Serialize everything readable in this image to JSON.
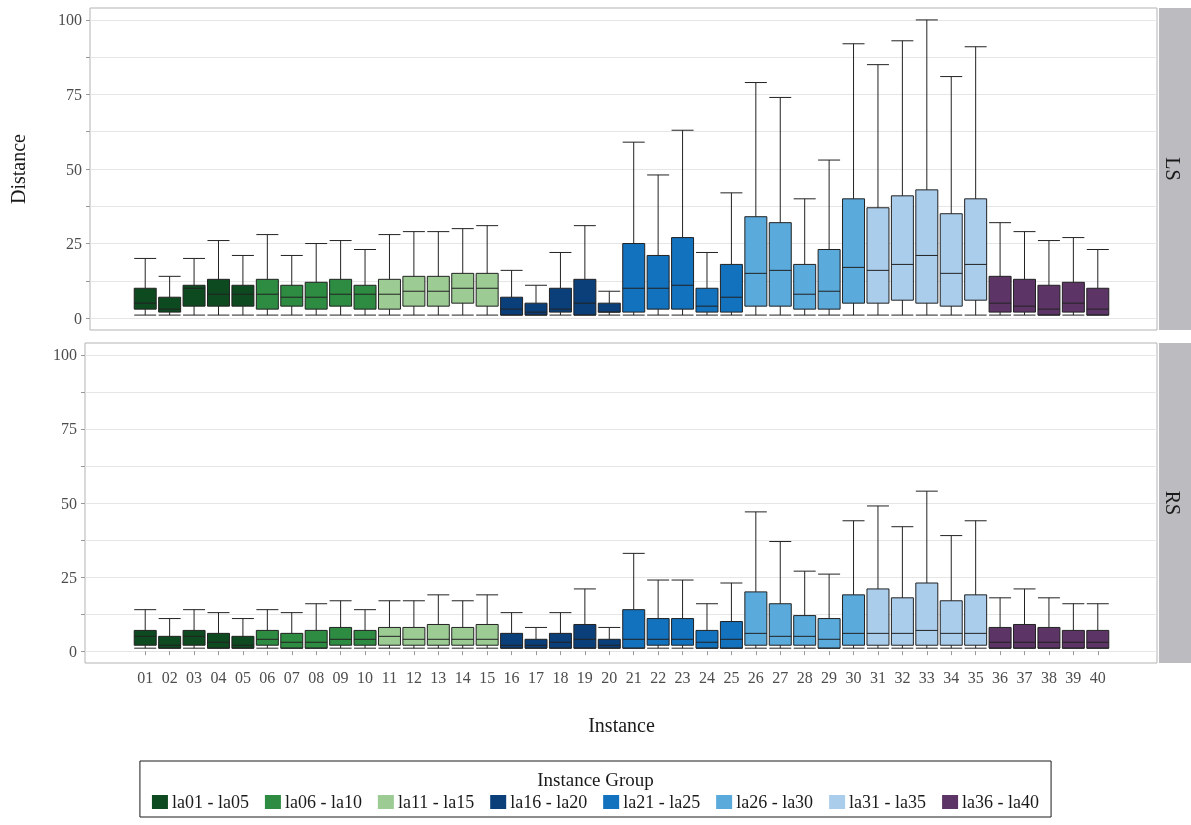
{
  "chart_data": [
    {
      "type": "box",
      "annotations": [
        "LS"
      ],
      "ylabel": "Distance",
      "tick_labels": "y",
      "grid": "y",
      "ylim": [
        -4,
        104
      ],
      "yticks": [
        0,
        {
          "value": 12.5,
          "label": null
        },
        25,
        {
          "value": 37.5,
          "label": null
        },
        50,
        {
          "value": 62.5,
          "label": null
        },
        75,
        {
          "value": 87.5,
          "label": null
        },
        100
      ],
      "categories": [
        "01",
        "02",
        "03",
        "04",
        "05",
        "06",
        "07",
        "08",
        "09",
        "10",
        "11",
        "12",
        "13",
        "14",
        "15",
        "16",
        "17",
        "18",
        "19",
        "20",
        "21",
        "22",
        "23",
        "24",
        "25",
        "26",
        "27",
        "28",
        "29",
        "30",
        "31",
        "32",
        "33",
        "34",
        "35",
        "36",
        "37",
        "38",
        "39",
        "40"
      ],
      "series": [
        {
          "color": "#0d4a1f",
          "boxes": [
            {
              "low": 1,
              "q1": 3,
              "median": 5,
              "q3": 10,
              "high": 20
            },
            {
              "low": 1,
              "q1": 2,
              "median": 3,
              "q3": 7,
              "high": 14
            },
            {
              "low": 1,
              "q1": 4,
              "median": 10,
              "q3": 11,
              "high": 20
            },
            {
              "low": 1,
              "q1": 4,
              "median": 8,
              "q3": 13,
              "high": 26
            },
            {
              "low": 1,
              "q1": 4,
              "median": 8,
              "q3": 11,
              "high": 21
            },
            null,
            null,
            null,
            null,
            null,
            null,
            null,
            null,
            null,
            null,
            null,
            null,
            null,
            null,
            null,
            null,
            null,
            null,
            null,
            null,
            null,
            null,
            null,
            null,
            null,
            null,
            null,
            null,
            null,
            null,
            null,
            null,
            null,
            null,
            null
          ]
        },
        {
          "color": "#2e8b42",
          "boxes": [
            null,
            null,
            null,
            null,
            null,
            {
              "low": 1,
              "q1": 3,
              "median": 8,
              "q3": 13,
              "high": 28
            },
            {
              "low": 1,
              "q1": 4,
              "median": 7,
              "q3": 11,
              "high": 21
            },
            {
              "low": 1,
              "q1": 3,
              "median": 7,
              "q3": 12,
              "high": 25
            },
            {
              "low": 1,
              "q1": 4,
              "median": 8,
              "q3": 13,
              "high": 26
            },
            {
              "low": 1,
              "q1": 3,
              "median": 8,
              "q3": 11,
              "high": 23
            },
            null,
            null,
            null,
            null,
            null,
            null,
            null,
            null,
            null,
            null,
            null,
            null,
            null,
            null,
            null,
            null,
            null,
            null,
            null,
            null,
            null,
            null,
            null,
            null,
            null,
            null,
            null,
            null,
            null,
            null
          ]
        },
        {
          "color": "#9ccb94",
          "boxes": [
            null,
            null,
            null,
            null,
            null,
            null,
            null,
            null,
            null,
            null,
            {
              "low": 1,
              "q1": 3,
              "median": 8,
              "q3": 13,
              "high": 28
            },
            {
              "low": 1,
              "q1": 4,
              "median": 9,
              "q3": 14,
              "high": 29
            },
            {
              "low": 1,
              "q1": 4,
              "median": 9,
              "q3": 14,
              "high": 29
            },
            {
              "low": 1,
              "q1": 5,
              "median": 10,
              "q3": 15,
              "high": 30
            },
            {
              "low": 1,
              "q1": 4,
              "median": 10,
              "q3": 15,
              "high": 31
            },
            null,
            null,
            null,
            null,
            null,
            null,
            null,
            null,
            null,
            null,
            null,
            null,
            null,
            null,
            null,
            null,
            null,
            null,
            null,
            null,
            null,
            null,
            null,
            null,
            null
          ]
        },
        {
          "color": "#0a3f7a",
          "boxes": [
            null,
            null,
            null,
            null,
            null,
            null,
            null,
            null,
            null,
            null,
            null,
            null,
            null,
            null,
            null,
            {
              "low": 1,
              "q1": 1,
              "median": 3,
              "q3": 7,
              "high": 16
            },
            {
              "low": 1,
              "q1": 1,
              "median": 2,
              "q3": 5,
              "high": 11
            },
            {
              "low": 1,
              "q1": 2,
              "median": 3,
              "q3": 10,
              "high": 22
            },
            {
              "low": 1,
              "q1": 1,
              "median": 5,
              "q3": 13,
              "high": 31
            },
            {
              "low": 1,
              "q1": 2,
              "median": 2,
              "q3": 5,
              "high": 9
            },
            null,
            null,
            null,
            null,
            null,
            null,
            null,
            null,
            null,
            null,
            null,
            null,
            null,
            null,
            null,
            null,
            null,
            null,
            null,
            null
          ]
        },
        {
          "color": "#1372bd",
          "boxes": [
            null,
            null,
            null,
            null,
            null,
            null,
            null,
            null,
            null,
            null,
            null,
            null,
            null,
            null,
            null,
            null,
            null,
            null,
            null,
            null,
            {
              "low": 1,
              "q1": 2,
              "median": 10,
              "q3": 25,
              "high": 59
            },
            {
              "low": 1,
              "q1": 3,
              "median": 10,
              "q3": 21,
              "high": 48
            },
            {
              "low": 1,
              "q1": 3,
              "median": 11,
              "q3": 27,
              "high": 63
            },
            {
              "low": 1,
              "q1": 2,
              "median": 4,
              "q3": 10,
              "high": 22
            },
            {
              "low": 1,
              "q1": 2,
              "median": 7,
              "q3": 18,
              "high": 42
            },
            null,
            null,
            null,
            null,
            null,
            null,
            null,
            null,
            null,
            null,
            null,
            null,
            null,
            null,
            null
          ]
        },
        {
          "color": "#5aaadc",
          "boxes": [
            null,
            null,
            null,
            null,
            null,
            null,
            null,
            null,
            null,
            null,
            null,
            null,
            null,
            null,
            null,
            null,
            null,
            null,
            null,
            null,
            null,
            null,
            null,
            null,
            null,
            {
              "low": 1,
              "q1": 4,
              "median": 15,
              "q3": 34,
              "high": 79
            },
            {
              "low": 1,
              "q1": 4,
              "median": 16,
              "q3": 32,
              "high": 74
            },
            {
              "low": 1,
              "q1": 3,
              "median": 8,
              "q3": 18,
              "high": 40
            },
            {
              "low": 1,
              "q1": 3,
              "median": 9,
              "q3": 23,
              "high": 53
            },
            {
              "low": 1,
              "q1": 5,
              "median": 17,
              "q3": 40,
              "high": 92
            },
            null,
            null,
            null,
            null,
            null,
            null,
            null,
            null,
            null,
            null
          ]
        },
        {
          "color": "#abcdec",
          "boxes": [
            null,
            null,
            null,
            null,
            null,
            null,
            null,
            null,
            null,
            null,
            null,
            null,
            null,
            null,
            null,
            null,
            null,
            null,
            null,
            null,
            null,
            null,
            null,
            null,
            null,
            null,
            null,
            null,
            null,
            null,
            {
              "low": 1,
              "q1": 5,
              "median": 16,
              "q3": 37,
              "high": 85
            },
            {
              "low": 1,
              "q1": 6,
              "median": 18,
              "q3": 41,
              "high": 93
            },
            {
              "low": 1,
              "q1": 5,
              "median": 21,
              "q3": 43,
              "high": 100
            },
            {
              "low": 1,
              "q1": 4,
              "median": 15,
              "q3": 35,
              "high": 81
            },
            {
              "low": 1,
              "q1": 6,
              "median": 18,
              "q3": 40,
              "high": 91
            },
            null,
            null,
            null,
            null,
            null
          ]
        },
        {
          "color": "#5c3566",
          "boxes": [
            null,
            null,
            null,
            null,
            null,
            null,
            null,
            null,
            null,
            null,
            null,
            null,
            null,
            null,
            null,
            null,
            null,
            null,
            null,
            null,
            null,
            null,
            null,
            null,
            null,
            null,
            null,
            null,
            null,
            null,
            null,
            null,
            null,
            null,
            null,
            {
              "low": 1,
              "q1": 2,
              "median": 5,
              "q3": 14,
              "high": 32
            },
            {
              "low": 1,
              "q1": 2,
              "median": 4,
              "q3": 13,
              "high": 29
            },
            {
              "low": 1,
              "q1": 1,
              "median": 3,
              "q3": 11,
              "high": 26
            },
            {
              "low": 1,
              "q1": 2,
              "median": 5,
              "q3": 12,
              "high": 27
            },
            {
              "low": 1,
              "q1": 1,
              "median": 3,
              "q3": 10,
              "high": 23
            }
          ]
        }
      ]
    },
    {
      "type": "box",
      "annotations": [
        "RS"
      ],
      "xlabel": "Instance",
      "legend": "bottom",
      "legend_title": "Instance Group",
      "grid": "y",
      "ylim": [
        -4,
        104
      ],
      "yticks": [
        0,
        {
          "value": 12.5,
          "label": null
        },
        25,
        {
          "value": 37.5,
          "label": null
        },
        50,
        {
          "value": 62.5,
          "label": null
        },
        75,
        {
          "value": 87.5,
          "label": null
        },
        100
      ],
      "categories": [
        "01",
        "02",
        "03",
        "04",
        "05",
        "06",
        "07",
        "08",
        "09",
        "10",
        "11",
        "12",
        "13",
        "14",
        "15",
        "16",
        "17",
        "18",
        "19",
        "20",
        "21",
        "22",
        "23",
        "24",
        "25",
        "26",
        "27",
        "28",
        "29",
        "30",
        "31",
        "32",
        "33",
        "34",
        "35",
        "36",
        "37",
        "38",
        "39",
        "40"
      ],
      "series": [
        {
          "name": "la01 - la05",
          "color": "#0d4a1f",
          "boxes": [
            {
              "low": 1,
              "q1": 2,
              "median": 5,
              "q3": 7,
              "high": 14
            },
            {
              "low": 1,
              "q1": 1,
              "median": 2,
              "q3": 5,
              "high": 11
            },
            {
              "low": 1,
              "q1": 2,
              "median": 5,
              "q3": 7,
              "high": 14
            },
            {
              "low": 1,
              "q1": 1,
              "median": 3,
              "q3": 6,
              "high": 13
            },
            {
              "low": 1,
              "q1": 1,
              "median": 2,
              "q3": 5,
              "high": 11
            },
            null,
            null,
            null,
            null,
            null,
            null,
            null,
            null,
            null,
            null,
            null,
            null,
            null,
            null,
            null,
            null,
            null,
            null,
            null,
            null,
            null,
            null,
            null,
            null,
            null,
            null,
            null,
            null,
            null,
            null,
            null,
            null,
            null,
            null,
            null
          ]
        },
        {
          "name": "la06 - la10",
          "color": "#2e8b42",
          "boxes": [
            null,
            null,
            null,
            null,
            null,
            {
              "low": 1,
              "q1": 2,
              "median": 4,
              "q3": 7,
              "high": 14
            },
            {
              "low": 1,
              "q1": 1,
              "median": 3,
              "q3": 6,
              "high": 13
            },
            {
              "low": 1,
              "q1": 1,
              "median": 3,
              "q3": 7,
              "high": 16
            },
            {
              "low": 1,
              "q1": 2,
              "median": 4,
              "q3": 8,
              "high": 17
            },
            {
              "low": 1,
              "q1": 2,
              "median": 4,
              "q3": 7,
              "high": 14
            },
            null,
            null,
            null,
            null,
            null,
            null,
            null,
            null,
            null,
            null,
            null,
            null,
            null,
            null,
            null,
            null,
            null,
            null,
            null,
            null,
            null,
            null,
            null,
            null,
            null,
            null,
            null,
            null,
            null,
            null
          ]
        },
        {
          "name": "la11 - la15",
          "color": "#9ccb94",
          "boxes": [
            null,
            null,
            null,
            null,
            null,
            null,
            null,
            null,
            null,
            null,
            {
              "low": 1,
              "q1": 2,
              "median": 5,
              "q3": 8,
              "high": 17
            },
            {
              "low": 1,
              "q1": 2,
              "median": 4,
              "q3": 8,
              "high": 17
            },
            {
              "low": 1,
              "q1": 2,
              "median": 4,
              "q3": 9,
              "high": 19
            },
            {
              "low": 1,
              "q1": 2,
              "median": 4,
              "q3": 8,
              "high": 17
            },
            {
              "low": 1,
              "q1": 2,
              "median": 4,
              "q3": 9,
              "high": 19
            },
            null,
            null,
            null,
            null,
            null,
            null,
            null,
            null,
            null,
            null,
            null,
            null,
            null,
            null,
            null,
            null,
            null,
            null,
            null,
            null,
            null,
            null,
            null,
            null,
            null
          ]
        },
        {
          "name": "la16 - la20",
          "color": "#0a3f7a",
          "boxes": [
            null,
            null,
            null,
            null,
            null,
            null,
            null,
            null,
            null,
            null,
            null,
            null,
            null,
            null,
            null,
            {
              "low": 1,
              "q1": 1,
              "median": 2,
              "q3": 6,
              "high": 13
            },
            {
              "low": 1,
              "q1": 1,
              "median": 2,
              "q3": 4,
              "high": 8
            },
            {
              "low": 1,
              "q1": 1,
              "median": 3,
              "q3": 6,
              "high": 13
            },
            {
              "low": 1,
              "q1": 1,
              "median": 4,
              "q3": 9,
              "high": 21
            },
            {
              "low": 1,
              "q1": 1,
              "median": 2,
              "q3": 4,
              "high": 8
            },
            null,
            null,
            null,
            null,
            null,
            null,
            null,
            null,
            null,
            null,
            null,
            null,
            null,
            null,
            null,
            null,
            null,
            null,
            null,
            null
          ]
        },
        {
          "name": "la21 - la25",
          "color": "#1372bd",
          "boxes": [
            null,
            null,
            null,
            null,
            null,
            null,
            null,
            null,
            null,
            null,
            null,
            null,
            null,
            null,
            null,
            null,
            null,
            null,
            null,
            null,
            {
              "low": 1,
              "q1": 1,
              "median": 4,
              "q3": 14,
              "high": 33
            },
            {
              "low": 1,
              "q1": 2,
              "median": 4,
              "q3": 11,
              "high": 24
            },
            {
              "low": 1,
              "q1": 2,
              "median": 4,
              "q3": 11,
              "high": 24
            },
            {
              "low": 1,
              "q1": 1,
              "median": 3,
              "q3": 7,
              "high": 16
            },
            {
              "low": 1,
              "q1": 1,
              "median": 4,
              "q3": 10,
              "high": 23
            },
            null,
            null,
            null,
            null,
            null,
            null,
            null,
            null,
            null,
            null,
            null,
            null,
            null,
            null,
            null
          ]
        },
        {
          "name": "la26 - la30",
          "color": "#5aaadc",
          "boxes": [
            null,
            null,
            null,
            null,
            null,
            null,
            null,
            null,
            null,
            null,
            null,
            null,
            null,
            null,
            null,
            null,
            null,
            null,
            null,
            null,
            null,
            null,
            null,
            null,
            null,
            {
              "low": 1,
              "q1": 2,
              "median": 6,
              "q3": 20,
              "high": 47
            },
            {
              "low": 1,
              "q1": 2,
              "median": 5,
              "q3": 16,
              "high": 37
            },
            {
              "low": 1,
              "q1": 2,
              "median": 5,
              "q3": 12,
              "high": 27
            },
            {
              "low": 1,
              "q1": 1,
              "median": 4,
              "q3": 11,
              "high": 26
            },
            {
              "low": 1,
              "q1": 2,
              "median": 6,
              "q3": 19,
              "high": 44
            },
            null,
            null,
            null,
            null,
            null,
            null,
            null,
            null,
            null,
            null
          ]
        },
        {
          "name": "la31 - la35",
          "color": "#abcdec",
          "boxes": [
            null,
            null,
            null,
            null,
            null,
            null,
            null,
            null,
            null,
            null,
            null,
            null,
            null,
            null,
            null,
            null,
            null,
            null,
            null,
            null,
            null,
            null,
            null,
            null,
            null,
            null,
            null,
            null,
            null,
            null,
            {
              "low": 1,
              "q1": 2,
              "median": 6,
              "q3": 21,
              "high": 49
            },
            {
              "low": 1,
              "q1": 2,
              "median": 6,
              "q3": 18,
              "high": 42
            },
            {
              "low": 1,
              "q1": 2,
              "median": 7,
              "q3": 23,
              "high": 54
            },
            {
              "low": 1,
              "q1": 2,
              "median": 6,
              "q3": 17,
              "high": 39
            },
            {
              "low": 1,
              "q1": 2,
              "median": 6,
              "q3": 19,
              "high": 44
            },
            null,
            null,
            null,
            null,
            null
          ]
        },
        {
          "name": "la36 - la40",
          "color": "#5c3566",
          "boxes": [
            null,
            null,
            null,
            null,
            null,
            null,
            null,
            null,
            null,
            null,
            null,
            null,
            null,
            null,
            null,
            null,
            null,
            null,
            null,
            null,
            null,
            null,
            null,
            null,
            null,
            null,
            null,
            null,
            null,
            null,
            null,
            null,
            null,
            null,
            null,
            {
              "low": 1,
              "q1": 1,
              "median": 3,
              "q3": 8,
              "high": 18
            },
            {
              "low": 1,
              "q1": 1,
              "median": 3,
              "q3": 9,
              "high": 21
            },
            {
              "low": 1,
              "q1": 1,
              "median": 3,
              "q3": 8,
              "high": 18
            },
            {
              "low": 1,
              "q1": 1,
              "median": 3,
              "q3": 7,
              "high": 16
            },
            {
              "low": 1,
              "q1": 1,
              "median": 3,
              "q3": 7,
              "high": 16
            }
          ]
        }
      ]
    }
  ]
}
